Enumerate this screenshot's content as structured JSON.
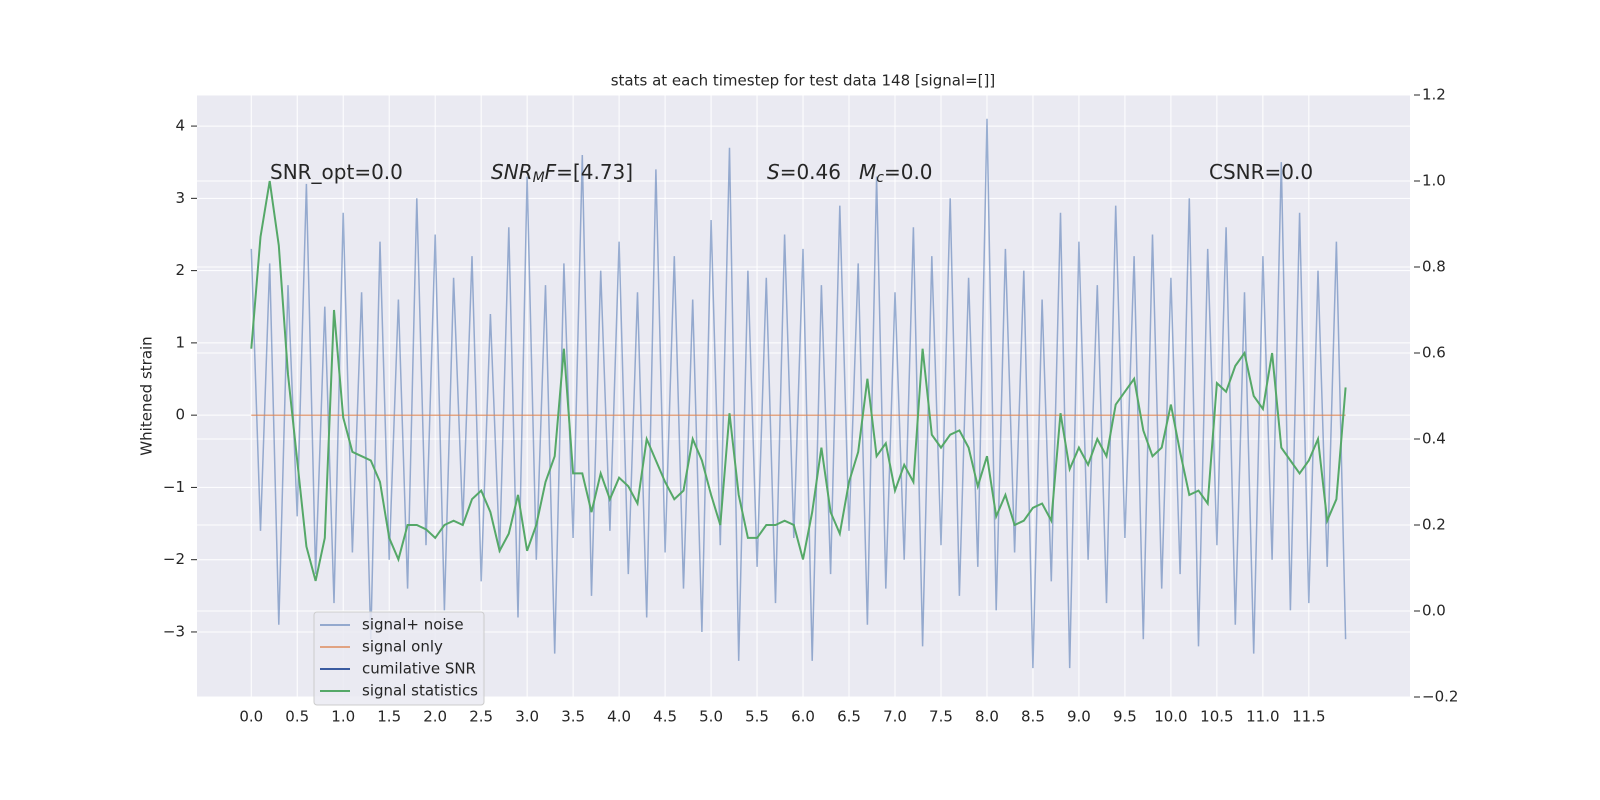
{
  "chart_data": {
    "type": "line",
    "title": "stats at each timestep for test data 148 [signal=[]]",
    "ylabel": "Whitened strain",
    "xlim": [
      -0.59,
      12.6
    ],
    "ylim": [
      -3.9,
      4.43
    ],
    "y2lim": [
      -0.2,
      1.2
    ],
    "xticks": [
      {
        "value": 0,
        "label": "0.0"
      },
      0.5,
      {
        "value": 1,
        "label": "1.0"
      },
      1.5,
      {
        "value": 2,
        "label": "2.0"
      },
      2.5,
      {
        "value": 3,
        "label": "3.0"
      },
      3.5,
      {
        "value": 4,
        "label": "4.0"
      },
      4.5,
      {
        "value": 5,
        "label": "5.0"
      },
      5.5,
      {
        "value": 6,
        "label": "6.0"
      },
      6.5,
      {
        "value": 7,
        "label": "7.0"
      },
      7.5,
      {
        "value": 8,
        "label": "8.0"
      },
      8.5,
      {
        "value": 9,
        "label": "9.0"
      },
      9.5,
      {
        "value": 10,
        "label": "10.0"
      },
      10.5,
      {
        "value": 11,
        "label": "11.0"
      },
      11.5
    ],
    "yticks": [
      {
        "value": -3,
        "label": "−3"
      },
      {
        "value": -2,
        "label": "−2"
      },
      {
        "value": -1,
        "label": "−1"
      },
      0,
      1,
      2,
      3,
      4
    ],
    "y2ticks": [
      {
        "value": -0.2,
        "label": "−0.2"
      },
      {
        "value": 0,
        "label": "0.0"
      },
      0.2,
      0.4,
      0.6,
      0.8,
      {
        "value": 1,
        "label": "1.0"
      },
      1.2
    ],
    "grid": true,
    "legend": "lower left",
    "annotations": [
      [
        {
          "text": "SNR_opt=0.0"
        }
      ],
      [
        {
          "text": "SNR",
          "style": "italic"
        },
        {
          "text": "M",
          "style": "italic-sub"
        },
        {
          "text": "F",
          "style": "italic"
        },
        {
          "text": "=[4.73]"
        }
      ],
      [
        {
          "text": "S",
          "style": "italic"
        },
        {
          "text": "=0.46"
        }
      ],
      [
        {
          "text": "M",
          "style": "italic"
        },
        {
          "text": "c",
          "style": "italic-sub"
        },
        {
          "text": "=0.0"
        }
      ],
      [
        {
          "text": "CSNR=0.0"
        }
      ]
    ],
    "x": [
      0,
      0.1,
      0.2,
      0.3,
      0.4,
      0.5,
      0.6,
      0.7,
      0.8,
      0.9,
      1,
      1.1,
      1.2,
      1.3,
      1.4,
      1.5,
      1.6,
      1.7,
      1.8,
      1.9,
      2,
      2.1,
      2.2,
      2.3,
      2.4,
      2.5,
      2.6,
      2.7,
      2.8,
      2.9,
      3,
      3.1,
      3.2,
      3.3,
      3.4,
      3.5,
      3.6,
      3.7,
      3.8,
      3.9,
      4,
      4.1,
      4.2,
      4.3,
      4.4,
      4.5,
      4.6,
      4.7,
      4.8,
      4.9,
      5,
      5.1,
      5.2,
      5.3,
      5.4,
      5.5,
      5.6,
      5.7,
      5.8,
      5.9,
      6,
      6.1,
      6.2,
      6.3,
      6.4,
      6.5,
      6.6,
      6.7,
      6.8,
      6.9,
      7,
      7.1,
      7.2,
      7.3,
      7.4,
      7.5,
      7.6,
      7.7,
      7.8,
      7.9,
      8,
      8.1,
      8.2,
      8.3,
      8.4,
      8.5,
      8.6,
      8.7,
      8.8,
      8.9,
      9,
      9.1,
      9.2,
      9.3,
      9.4,
      9.5,
      9.6,
      9.7,
      9.8,
      9.9,
      10,
      10.1,
      10.2,
      10.3,
      10.4,
      10.5,
      10.6,
      10.7,
      10.8,
      10.9,
      11,
      11.1,
      11.2,
      11.3,
      11.4,
      11.5,
      11.6,
      11.7,
      11.8,
      11.9
    ],
    "series": [
      {
        "name": "signal+ noise",
        "color": "#4c72b0",
        "alpha": 0.55,
        "values": [
          2.3,
          -1.6,
          2.1,
          -2.9,
          1.8,
          -1.4,
          3.2,
          -2.2,
          1.5,
          -2.6,
          2.8,
          -1.9,
          1.7,
          -3.1,
          2.4,
          -2.0,
          1.6,
          -2.4,
          3.0,
          -1.8,
          2.5,
          -2.7,
          1.9,
          -1.5,
          2.2,
          -2.3,
          1.4,
          -1.9,
          2.6,
          -2.8,
          3.3,
          -2.0,
          1.8,
          -3.3,
          2.1,
          -1.7,
          3.6,
          -2.5,
          2.0,
          -1.6,
          2.4,
          -2.2,
          1.7,
          -2.8,
          3.4,
          -1.9,
          2.2,
          -2.4,
          1.6,
          -3.0,
          2.7,
          -1.8,
          3.7,
          -3.4,
          2.0,
          -2.1,
          1.9,
          -2.6,
          2.5,
          -1.7,
          2.3,
          -3.4,
          1.8,
          -2.2,
          2.9,
          -1.6,
          2.1,
          -2.9,
          3.3,
          -2.4,
          1.7,
          -2.0,
          2.6,
          -3.2,
          2.2,
          -1.8,
          3.0,
          -2.5,
          1.9,
          -2.1,
          4.1,
          -2.7,
          2.3,
          -1.9,
          2.0,
          -3.5,
          1.6,
          -2.3,
          2.8,
          -3.5,
          2.4,
          -2.0,
          1.8,
          -2.6,
          2.9,
          -1.7,
          2.2,
          -3.1,
          2.5,
          -2.4,
          1.9,
          -2.2,
          3.0,
          -3.2,
          2.3,
          -1.8,
          2.6,
          -2.9,
          1.7,
          -3.3,
          2.2,
          -2.0,
          3.5,
          -2.7,
          2.8,
          -2.6,
          2.0,
          -2.1,
          2.4,
          -3.1
        ]
      },
      {
        "name": "signal only",
        "color": "#dd8452",
        "alpha": 0.7,
        "values": [
          0,
          0,
          0,
          0,
          0,
          0,
          0,
          0,
          0,
          0,
          0,
          0,
          0,
          0,
          0,
          0,
          0,
          0,
          0,
          0,
          0,
          0,
          0,
          0,
          0,
          0,
          0,
          0,
          0,
          0,
          0,
          0,
          0,
          0,
          0,
          0,
          0,
          0,
          0,
          0,
          0,
          0,
          0,
          0,
          0,
          0,
          0,
          0,
          0,
          0,
          0,
          0,
          0,
          0,
          0,
          0,
          0,
          0,
          0,
          0,
          0,
          0,
          0,
          0,
          0,
          0,
          0,
          0,
          0,
          0,
          0,
          0,
          0,
          0,
          0,
          0,
          0,
          0,
          0,
          0,
          0,
          0,
          0,
          0,
          0,
          0,
          0,
          0,
          0,
          0,
          0,
          0,
          0,
          0,
          0,
          0,
          0,
          0,
          0,
          0,
          0,
          0,
          0,
          0,
          0,
          0,
          0,
          0,
          0,
          0,
          0,
          0,
          0,
          0,
          0,
          0,
          0,
          0,
          0,
          0
        ]
      },
      {
        "name": "cumilative SNR",
        "color": "#3a5ba0"
      },
      {
        "name": "signal statistics",
        "color": "#55a868",
        "axis": "y2",
        "values": [
          0.61,
          0.87,
          1.0,
          0.85,
          0.55,
          0.35,
          0.15,
          0.07,
          0.17,
          0.7,
          0.45,
          0.37,
          0.36,
          0.35,
          0.3,
          0.17,
          0.12,
          0.2,
          0.2,
          0.19,
          0.17,
          0.2,
          0.21,
          0.2,
          0.26,
          0.28,
          0.23,
          0.14,
          0.18,
          0.27,
          0.14,
          0.2,
          0.3,
          0.36,
          0.61,
          0.32,
          0.32,
          0.23,
          0.32,
          0.26,
          0.31,
          0.29,
          0.25,
          0.4,
          0.35,
          0.3,
          0.26,
          0.28,
          0.4,
          0.35,
          0.27,
          0.2,
          0.46,
          0.27,
          0.17,
          0.17,
          0.2,
          0.2,
          0.21,
          0.2,
          0.12,
          0.23,
          0.38,
          0.23,
          0.18,
          0.3,
          0.37,
          0.54,
          0.36,
          0.39,
          0.28,
          0.34,
          0.3,
          0.61,
          0.41,
          0.38,
          0.41,
          0.42,
          0.38,
          0.29,
          0.36,
          0.22,
          0.27,
          0.2,
          0.21,
          0.24,
          0.25,
          0.21,
          0.46,
          0.33,
          0.38,
          0.34,
          0.4,
          0.36,
          0.48,
          0.51,
          0.54,
          0.42,
          0.36,
          0.38,
          0.48,
          0.37,
          0.27,
          0.28,
          0.25,
          0.53,
          0.51,
          0.57,
          0.6,
          0.5,
          0.47,
          0.6,
          0.38,
          0.35,
          0.32,
          0.35,
          0.4,
          0.21,
          0.26,
          0.52
        ]
      }
    ]
  }
}
